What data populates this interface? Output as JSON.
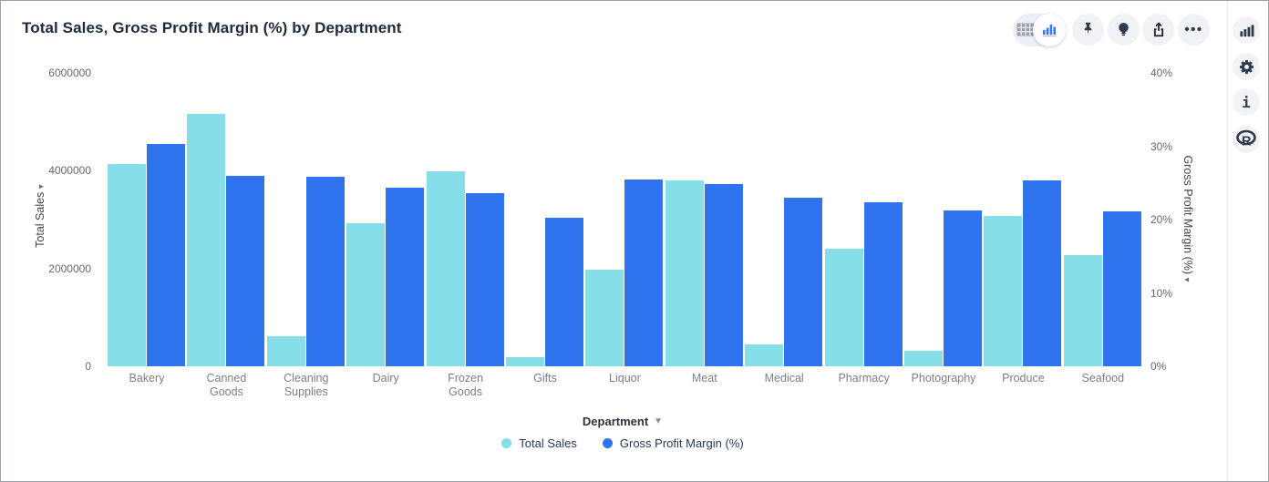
{
  "header": {
    "title": "Total Sales, Gross Profit Margin (%) by Department"
  },
  "toolbar": {
    "icons": [
      {
        "name": "table-view-icon",
        "selected": false
      },
      {
        "name": "chart-view-icon",
        "selected": true
      },
      {
        "name": "pin-icon"
      },
      {
        "name": "insights-bulb-icon"
      },
      {
        "name": "export-share-icon"
      },
      {
        "name": "more-options-icon",
        "glyph": "•••"
      }
    ]
  },
  "side_panel": {
    "icons": [
      {
        "name": "chart-type-icon"
      },
      {
        "name": "settings-gear-icon"
      },
      {
        "name": "info-icon",
        "glyph": "i"
      },
      {
        "name": "r-language-icon",
        "glyph": "R"
      }
    ]
  },
  "chart_data": {
    "type": "bar",
    "title": "Total Sales, Gross Profit Margin (%) by Department",
    "categories": [
      "Bakery",
      "Canned Goods",
      "Cleaning Supplies",
      "Dairy",
      "Frozen Goods",
      "Gifts",
      "Liquor",
      "Meat",
      "Medical",
      "Pharmacy",
      "Photography",
      "Produce",
      "Seafood"
    ],
    "series": [
      {
        "name": "Total Sales",
        "axis": "left",
        "color": "#85DEE8",
        "values": [
          4140000,
          5160000,
          610000,
          2920000,
          3990000,
          190000,
          1980000,
          3810000,
          440000,
          2410000,
          310000,
          3070000,
          2270000
        ]
      },
      {
        "name": "Gross Profit Margin (%)",
        "axis": "right",
        "color": "#2F74EE",
        "values": [
          30.3,
          26.0,
          25.9,
          24.3,
          23.6,
          20.3,
          25.5,
          24.9,
          23.0,
          22.4,
          21.3,
          25.4,
          21.1
        ]
      }
    ],
    "left_axis": {
      "title": "Total Sales",
      "max": 6000000,
      "ticks": [
        0,
        2000000,
        4000000,
        6000000
      ],
      "tick_labels": [
        "0",
        "2000000",
        "4000000",
        "6000000"
      ]
    },
    "right_axis": {
      "title": "Gross Profit Margin (%)",
      "max": 40,
      "ticks": [
        0,
        10,
        20,
        30,
        40
      ],
      "tick_labels": [
        "0%",
        "10%",
        "20%",
        "30%",
        "40%"
      ]
    },
    "x_axis": {
      "title": "Department"
    },
    "legend": [
      "Total Sales",
      "Gross Profit Margin (%)"
    ],
    "legend_position": "bottom",
    "grid": false
  }
}
